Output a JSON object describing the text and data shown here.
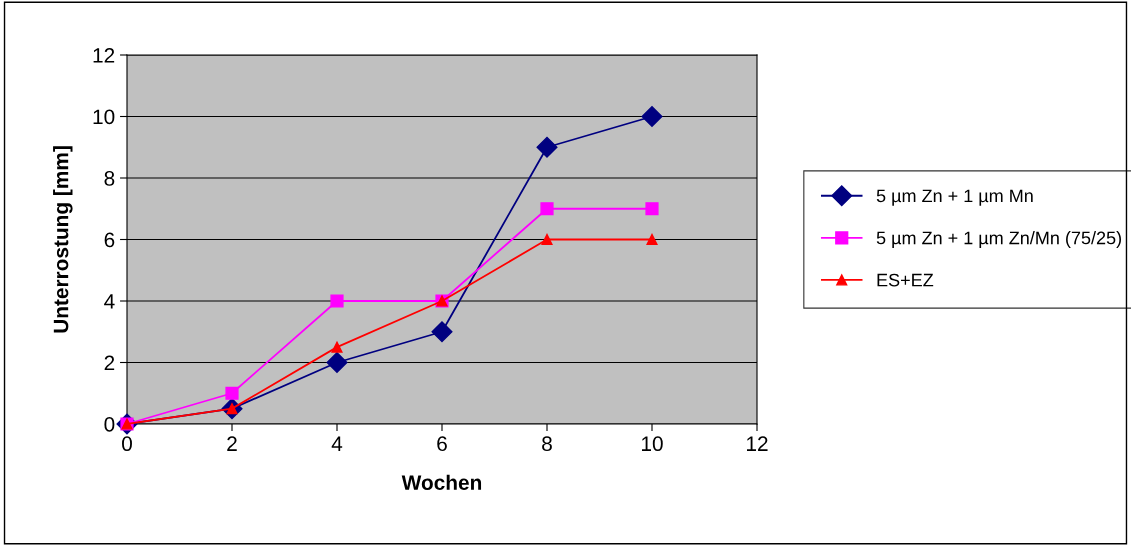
{
  "chart_data": {
    "type": "line",
    "xlabel": "Wochen",
    "ylabel": "Unterrostung [mm]",
    "x": [
      0,
      2,
      4,
      6,
      8,
      10
    ],
    "series": [
      {
        "name": "5 µm Zn + 1 µm Mn",
        "color": "#000080",
        "marker": "diamond",
        "values": [
          0,
          0.5,
          2,
          3,
          9,
          10
        ]
      },
      {
        "name": "5 µm Zn + 1 µm Zn/Mn (75/25)",
        "color": "#ff00ff",
        "marker": "square",
        "values": [
          0,
          1,
          4,
          4,
          7,
          7
        ]
      },
      {
        "name": "ES+EZ",
        "color": "#ff0000",
        "marker": "triangle",
        "values": [
          0,
          0.5,
          2.5,
          4,
          6,
          6
        ]
      }
    ],
    "xlim": [
      0,
      12
    ],
    "xticks": [
      0,
      2,
      4,
      6,
      8,
      10,
      12
    ],
    "ylim": [
      0,
      12
    ],
    "yticks": [
      0,
      2,
      4,
      6,
      8,
      10,
      12
    ],
    "grid": "y",
    "legend": "right",
    "line_style": "solid"
  }
}
